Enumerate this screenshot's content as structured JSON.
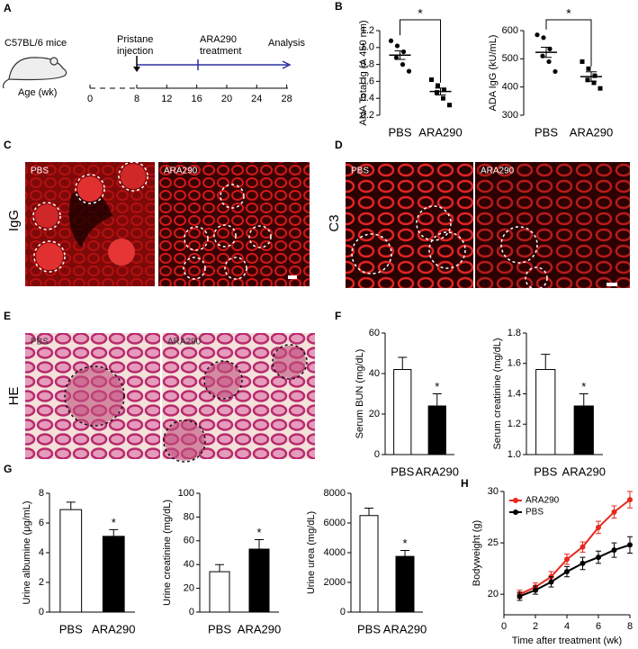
{
  "panel_letters": [
    "A",
    "B",
    "C",
    "D",
    "E",
    "F",
    "G",
    "H"
  ],
  "timeline": {
    "subject": "C57BL/6 mice",
    "axis_label": "Age (wk)",
    "ticks": [
      0,
      8,
      12,
      16,
      20,
      24,
      28
    ],
    "events": [
      {
        "lines": [
          "Pristane",
          "injection"
        ]
      },
      {
        "lines": [
          "ARA290",
          "treatment"
        ]
      },
      {
        "lines": [
          "Analysis"
        ]
      }
    ]
  },
  "micrographs": [
    {
      "label": "IgG",
      "panels": [
        "PBS",
        "ARA290"
      ]
    },
    {
      "label": "C3",
      "panels": [
        "PBS",
        "ARA290"
      ]
    },
    {
      "label": "HE",
      "panels": [
        "PBS",
        "ARA290"
      ]
    }
  ],
  "chart_data": [
    {
      "type": "strip",
      "ylabel": "ANA Total Ig (A 450 nm)",
      "categories": [
        "PBS",
        "ARA290"
      ],
      "points": [
        [
          1.08,
          1.02,
          0.95,
          0.88,
          0.8,
          0.72
        ],
        [
          0.62,
          0.55,
          0.5,
          0.47,
          0.4,
          0.32
        ]
      ],
      "values": [
        0.91,
        0.48
      ],
      "errors": [
        0.05,
        0.04
      ],
      "ylim": [
        0.2,
        1.2
      ],
      "yticks": [
        0.2,
        0.4,
        0.6,
        0.8,
        {
          "value": 1.0,
          "label": "1.0"
        },
        1.2
      ],
      "annotations": [
        {
          "text": "*",
          "bracket": [
            0,
            1
          ]
        }
      ]
    },
    {
      "type": "strip",
      "ylabel": "ADA IgG (kU/mL)",
      "categories": [
        "PBS",
        "ARA290"
      ],
      "points": [
        [
          585,
          575,
          535,
          510,
          490,
          455
        ],
        [
          490,
          465,
          440,
          425,
          415,
          395
        ]
      ],
      "values": [
        523,
        437
      ],
      "errors": [
        18,
        17
      ],
      "ylim": [
        300,
        600
      ],
      "yticks": [
        300,
        400,
        500,
        600
      ],
      "annotations": [
        {
          "text": "*",
          "bracket": [
            0,
            1
          ]
        }
      ]
    },
    {
      "type": "bar",
      "ylabel": "Serum BUN (mg/dL)",
      "categories": [
        "PBS",
        "ARA290"
      ],
      "values": [
        42,
        24
      ],
      "errors": [
        6,
        6
      ],
      "colors": [
        "#ffffff",
        "#000000"
      ],
      "ylim": [
        0,
        60
      ],
      "yticks": [
        0,
        20,
        40,
        60
      ],
      "annotations": [
        {
          "text": "*",
          "category": 1
        }
      ]
    },
    {
      "type": "bar",
      "ylabel": "Serum creatinine (mg/dL)",
      "categories": [
        "PBS",
        "ARA290"
      ],
      "values": [
        1.56,
        1.32
      ],
      "errors": [
        0.1,
        0.08
      ],
      "colors": [
        "#ffffff",
        "#000000"
      ],
      "ylim": [
        1.0,
        1.8
      ],
      "yticks": [
        {
          "value": 1.0,
          "label": "1.0"
        },
        1.2,
        1.4,
        1.6,
        1.8
      ],
      "annotations": [
        {
          "text": "*",
          "category": 1
        }
      ]
    },
    {
      "type": "bar",
      "ylabel": "Urine albumine (μg/mL)",
      "categories": [
        "PBS",
        "ARA290"
      ],
      "values": [
        6.9,
        5.1
      ],
      "errors": [
        0.5,
        0.45
      ],
      "colors": [
        "#ffffff",
        "#000000"
      ],
      "ylim": [
        0,
        8
      ],
      "yticks": [
        0,
        2,
        4,
        6,
        8
      ],
      "annotations": [
        {
          "text": "*",
          "category": 1
        }
      ]
    },
    {
      "type": "bar",
      "ylabel": "Urine creatinine (mg/dL)",
      "categories": [
        "PBS",
        "ARA290"
      ],
      "values": [
        34,
        53
      ],
      "errors": [
        6,
        8
      ],
      "colors": [
        "#ffffff",
        "#000000"
      ],
      "ylim": [
        0,
        100
      ],
      "yticks": [
        0,
        20,
        40,
        60,
        80,
        100
      ],
      "annotations": [
        {
          "text": "*",
          "category": 1
        }
      ]
    },
    {
      "type": "bar",
      "ylabel": "Urine urea (mg/dL)",
      "categories": [
        "PBS",
        "ARA290"
      ],
      "values": [
        6500,
        3750
      ],
      "errors": [
        500,
        400
      ],
      "colors": [
        "#ffffff",
        "#000000"
      ],
      "ylim": [
        0,
        8000
      ],
      "yticks": [
        0,
        2000,
        4000,
        6000,
        8000
      ],
      "annotations": [
        {
          "text": "*",
          "category": 1
        }
      ]
    },
    {
      "type": "line",
      "ylabel": "Bodyweight (g)",
      "xlabel": "Time after treatment (wk)",
      "x": [
        1,
        2,
        3,
        4,
        5,
        6,
        7,
        8
      ],
      "xlim": [
        0,
        8
      ],
      "xticks": [
        0,
        2,
        4,
        6,
        8
      ],
      "ylim": [
        18,
        30
      ],
      "yticks": [
        20,
        25,
        30
      ],
      "legend": "upper left",
      "series": [
        {
          "name": "ARA290",
          "color": "#e8281f",
          "values": [
            20,
            20.7,
            21.7,
            23.4,
            24.6,
            26.5,
            28,
            29.2
          ],
          "errors": [
            0.4,
            0.4,
            0.5,
            0.5,
            0.5,
            0.6,
            0.6,
            0.8
          ]
        },
        {
          "name": "PBS",
          "color": "#000000",
          "values": [
            19.8,
            20.4,
            21.2,
            22.2,
            23,
            23.6,
            24.3,
            24.8
          ],
          "errors": [
            0.4,
            0.4,
            0.5,
            0.5,
            0.6,
            0.6,
            0.7,
            0.8
          ]
        }
      ]
    }
  ]
}
